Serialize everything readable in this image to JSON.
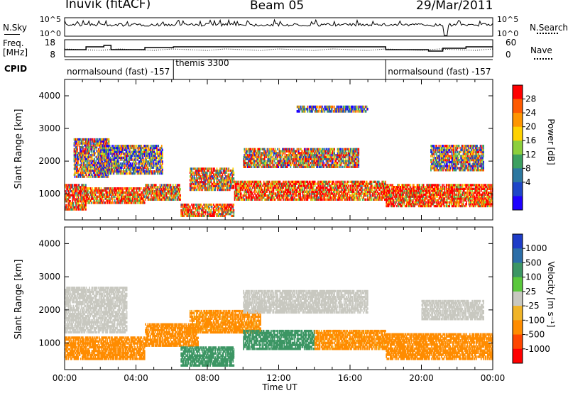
{
  "header": {
    "station": "Inuvik (fitACF)",
    "beam": "Beam 05",
    "date": "29/Mar/2011"
  },
  "strips": {
    "nsky_label": "N.Sky",
    "nsearch_label": "N.Search",
    "noise_ticks_left": [
      "10^5",
      "10^0"
    ],
    "noise_ticks_right": [
      "10^5",
      "10^0"
    ],
    "freq_label_1": "Freq.",
    "freq_label_2": "[MHz]",
    "freq_ticks": [
      "18",
      "8"
    ],
    "nave_label": "Nave",
    "nave_ticks": [
      "60",
      "0"
    ],
    "cpid_label": "CPID",
    "cpid_segments": [
      {
        "label": "normalsound (fast) -157",
        "start_hour": 0,
        "end_hour": 6.1
      },
      {
        "label": "themis 3300",
        "start_hour": 6.1,
        "end_hour": 18.0
      },
      {
        "label": "normalsound (fast) -157",
        "start_hour": 18.0,
        "end_hour": 24
      }
    ]
  },
  "power_colorbar": {
    "title": "Power [dB]",
    "ticks": [
      "28",
      "24",
      "20",
      "16",
      "12",
      "8",
      "4"
    ],
    "colors": [
      "#ff0000",
      "#ff5a00",
      "#ff9600",
      "#ffd200",
      "#8ccf3c",
      "#3ca060",
      "#2c78a0",
      "#1e46c8",
      "#1e00ff"
    ]
  },
  "velocity_colorbar": {
    "title": "Velocity [m s⁻¹]",
    "ticks": [
      "1000",
      "500",
      "100",
      "25",
      "-25",
      "-100",
      "-500",
      "-1000"
    ],
    "colors": [
      "#1e3cc8",
      "#2c6ea8",
      "#3c9664",
      "#5ac83c",
      "#c8c8c0",
      "#f0b428",
      "#ff8c00",
      "#ff4600",
      "#ff0000"
    ]
  },
  "chart_data": [
    {
      "type": "heatmap",
      "name": "Power",
      "ylabel": "Slant Range [km]",
      "ylim": [
        200,
        4500
      ],
      "xlim": [
        0,
        24
      ],
      "yticks": [
        1000,
        2000,
        3000,
        4000
      ],
      "bands": [
        {
          "t0": 0,
          "t1": 1.2,
          "r0": 500,
          "r1": 1300,
          "level": 24
        },
        {
          "t0": 0.5,
          "t1": 2.5,
          "r0": 1500,
          "r1": 2700,
          "level": 14
        },
        {
          "t0": 1.2,
          "t1": 4.5,
          "r0": 700,
          "r1": 1200,
          "level": 26
        },
        {
          "t0": 2.0,
          "t1": 5.5,
          "r0": 1600,
          "r1": 2500,
          "level": 10
        },
        {
          "t0": 4.5,
          "t1": 6.5,
          "r0": 800,
          "r1": 1300,
          "level": 22
        },
        {
          "t0": 6.5,
          "t1": 9.5,
          "r0": 300,
          "r1": 700,
          "level": 24
        },
        {
          "t0": 7.0,
          "t1": 9.5,
          "r0": 1100,
          "r1": 1800,
          "level": 20
        },
        {
          "t0": 9.5,
          "t1": 18,
          "r0": 800,
          "r1": 1400,
          "level": 27
        },
        {
          "t0": 10,
          "t1": 16.5,
          "r0": 1800,
          "r1": 2400,
          "level": 18
        },
        {
          "t0": 13,
          "t1": 17,
          "r0": 3500,
          "r1": 3700,
          "level": 8
        },
        {
          "t0": 18,
          "t1": 24,
          "r0": 600,
          "r1": 1300,
          "level": 28
        },
        {
          "t0": 20.5,
          "t1": 23.5,
          "r0": 1700,
          "r1": 2500,
          "level": 14
        }
      ]
    },
    {
      "type": "heatmap",
      "name": "Velocity",
      "ylabel": "Slant Range [km]",
      "xlabel": "Time UT",
      "ylim": [
        200,
        4500
      ],
      "xlim": [
        0,
        24
      ],
      "yticks": [
        1000,
        2000,
        3000,
        4000
      ],
      "xticks": [
        "00:00",
        "04:00",
        "08:00",
        "12:00",
        "16:00",
        "20:00",
        "00:00"
      ],
      "bands": [
        {
          "t0": 0,
          "t1": 3.5,
          "r0": 1300,
          "r1": 2700,
          "level": 0
        },
        {
          "t0": 0,
          "t1": 4.5,
          "r0": 500,
          "r1": 1200,
          "level": -300
        },
        {
          "t0": 4.5,
          "t1": 7.5,
          "r0": 900,
          "r1": 1600,
          "level": -200
        },
        {
          "t0": 6.5,
          "t1": 9.5,
          "r0": 300,
          "r1": 900,
          "level": 300
        },
        {
          "t0": 7.0,
          "t1": 11,
          "r0": 1300,
          "r1": 2000,
          "level": -150
        },
        {
          "t0": 10,
          "t1": 17,
          "r0": 1900,
          "r1": 2600,
          "level": 0
        },
        {
          "t0": 10,
          "t1": 14,
          "r0": 800,
          "r1": 1400,
          "level": 200
        },
        {
          "t0": 14,
          "t1": 18,
          "r0": 800,
          "r1": 1400,
          "level": -150
        },
        {
          "t0": 18,
          "t1": 24,
          "r0": 500,
          "r1": 1300,
          "level": -200
        },
        {
          "t0": 20,
          "t1": 23.5,
          "r0": 1700,
          "r1": 2300,
          "level": 0
        }
      ]
    }
  ]
}
